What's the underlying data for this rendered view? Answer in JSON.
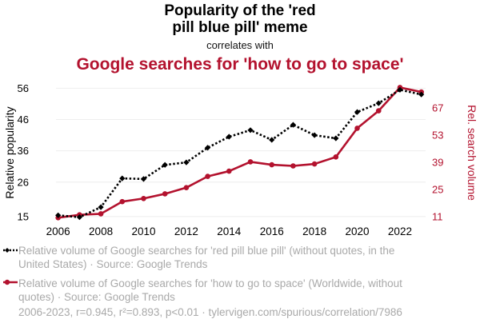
{
  "header": {
    "title_line1": "Popularity of the 'red",
    "title_line2": "pill blue pill' meme",
    "subtitle": "correlates with",
    "title2": "Google searches for 'how to go to space'"
  },
  "colors": {
    "series1": "#000000",
    "series2": "#b3122e",
    "grid": "#eeeeee",
    "legend_text": "#a9a9a9"
  },
  "chart_data": {
    "type": "line",
    "x": [
      2006,
      2007,
      2008,
      2009,
      2010,
      2011,
      2012,
      2013,
      2014,
      2015,
      2016,
      2017,
      2018,
      2019,
      2020,
      2021,
      2022,
      2023
    ],
    "x_ticks": [
      "2006",
      "2008",
      "2010",
      "2012",
      "2014",
      "2016",
      "2018",
      "2020",
      "2022"
    ],
    "x_tick_values": [
      2006,
      2008,
      2010,
      2012,
      2014,
      2016,
      2018,
      2020,
      2022
    ],
    "xlim": [
      2005.9,
      2023.2
    ],
    "series": [
      {
        "name": "Relative volume of Google searches for 'red pill blue pill' (without quotes, in the United States) · Source: Google Trends",
        "axis": "left",
        "style": "dotted-diamond",
        "values": [
          15.4,
          14.8,
          18,
          27.2,
          27,
          31.5,
          32.3,
          37,
          40.5,
          42.6,
          39.5,
          44.3,
          41,
          40,
          48.4,
          51.2,
          55.5,
          54
        ]
      },
      {
        "name": "Relative volume of Google searches for 'how to go to space' (Worldwide, without quotes) · Source: Google Trends",
        "axis": "right",
        "style": "solid-circle",
        "values": [
          10.5,
          12,
          12.5,
          18.8,
          20.4,
          22.8,
          26,
          31.8,
          34.5,
          39.3,
          37.8,
          37.2,
          38.2,
          41.8,
          56.6,
          65.6,
          77.6,
          75.3
        ]
      }
    ],
    "y_left": {
      "label": "Relative popularity",
      "ticks": [
        15,
        26,
        36,
        46,
        56
      ],
      "ylim": [
        14.2,
        56.6
      ]
    },
    "y_right": {
      "label": "Rel. search volume",
      "ticks": [
        11,
        25,
        39,
        53,
        67
      ],
      "ylim": [
        9.8,
        78.2
      ]
    },
    "legend_placement": "bottom"
  },
  "legend": {
    "item1": "Relative volume of Google searches for 'red pill blue pill' (without quotes, in the United States) · Source: Google Trends",
    "item2": "Relative volume of Google searches for 'how to go to space' (Worldwide, without quotes) · Source: Google Trends"
  },
  "footer": "2006-2023, r=0.945, r²=0.893, p<0.01 · tylervigen.com/spurious/correlation/7986"
}
